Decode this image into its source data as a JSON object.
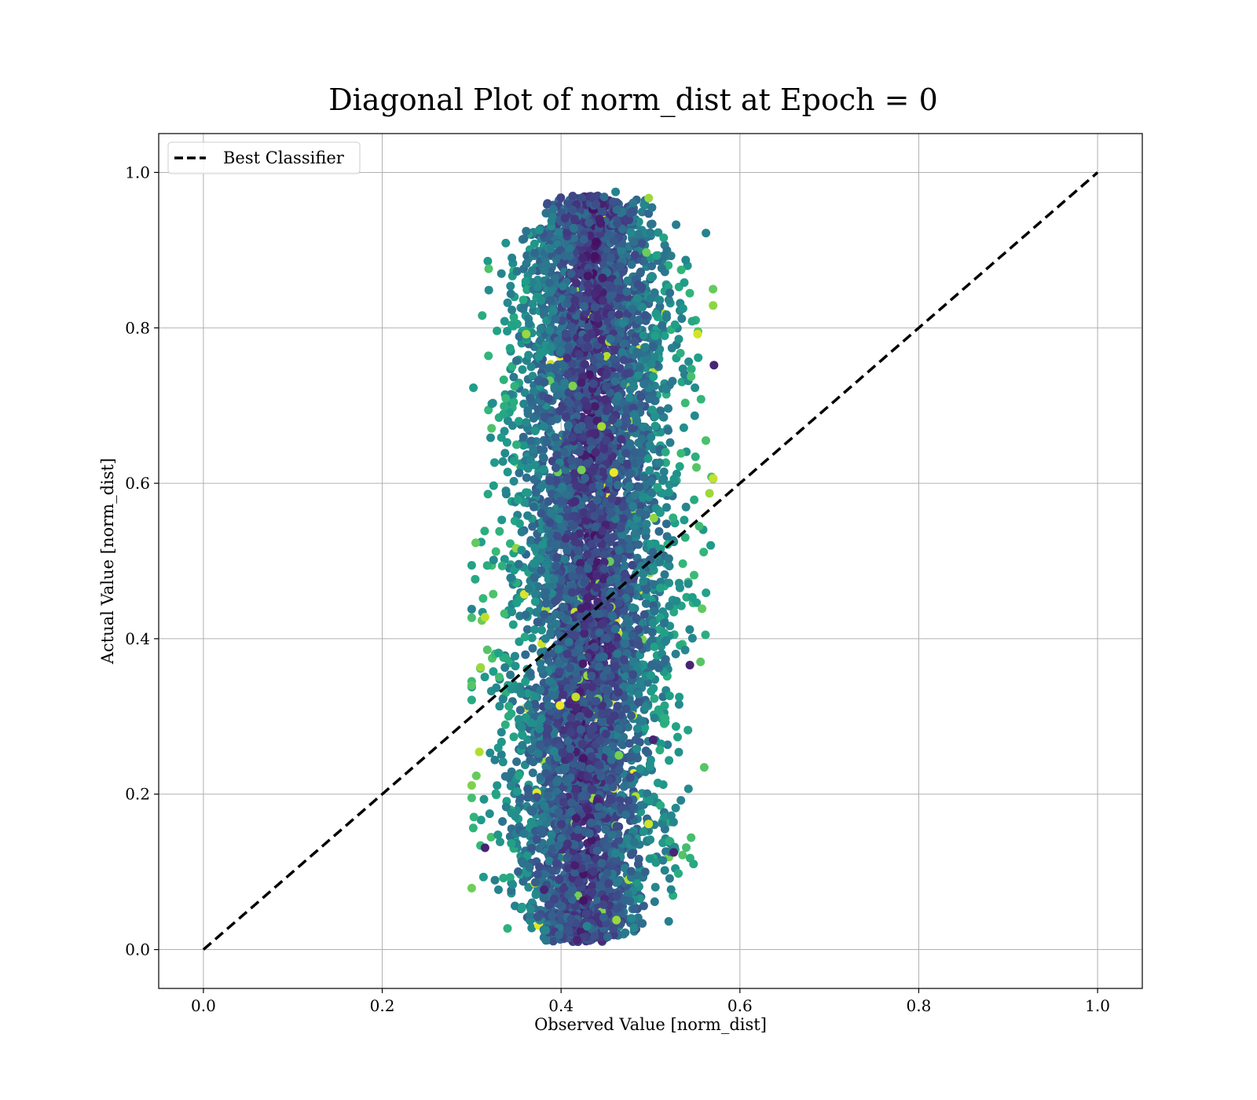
{
  "chart_data": {
    "type": "scatter",
    "title": "Diagonal Plot of norm_dist at Epoch = 0",
    "xlabel": "Observed Value [norm_dist]",
    "ylabel": "Actual Value [norm_dist]",
    "xlim": [
      -0.05,
      1.05
    ],
    "ylim": [
      -0.05,
      1.05
    ],
    "x_ticks": [
      0.0,
      0.2,
      0.4,
      0.6,
      0.8,
      1.0
    ],
    "y_ticks": [
      0.0,
      0.2,
      0.4,
      0.6,
      0.8,
      1.0
    ],
    "x_tick_labels": [
      "0.0",
      "0.2",
      "0.4",
      "0.6",
      "0.8",
      "1.0"
    ],
    "y_tick_labels": [
      "0.0",
      "0.2",
      "0.4",
      "0.6",
      "0.8",
      "1.0"
    ],
    "grid": true,
    "legend": {
      "placement": "upper-left",
      "entries": [
        "Best Classifier"
      ]
    },
    "reference_line": {
      "name": "Best Classifier",
      "style": "dashed",
      "color": "#000000",
      "x": [
        0.0,
        1.0
      ],
      "y": [
        0.0,
        1.0
      ]
    },
    "scatter_summary": {
      "colormap": "viridis",
      "x_center": 0.43,
      "x_spread": 0.045,
      "x_range": [
        0.3,
        0.57
      ],
      "y_range": [
        0.01,
        0.97
      ],
      "approx_point_count": 6000
    },
    "points": [
      [
        0.418,
        0.012
      ],
      [
        0.429,
        0.03
      ],
      [
        0.461,
        0.975
      ],
      [
        0.498,
        0.967
      ],
      [
        0.345,
        0.89
      ],
      [
        0.562,
        0.922
      ],
      [
        0.571,
        0.752
      ],
      [
        0.3,
        0.438
      ],
      [
        0.31,
        0.363
      ],
      [
        0.315,
        0.131
      ],
      [
        0.33,
        0.077
      ],
      [
        0.534,
        0.192
      ],
      [
        0.544,
        0.366
      ],
      [
        0.566,
        0.587
      ],
      [
        0.492,
        0.474
      ],
      [
        0.503,
        0.27
      ],
      [
        0.469,
        0.806
      ],
      [
        0.524,
        0.774
      ],
      [
        0.361,
        0.792
      ],
      [
        0.345,
        0.823
      ],
      [
        0.392,
        0.255
      ],
      [
        0.381,
        0.077
      ],
      [
        0.461,
        0.124
      ],
      [
        0.462,
        0.038
      ],
      [
        0.526,
        0.125
      ],
      [
        0.516,
        0.102
      ]
    ]
  }
}
